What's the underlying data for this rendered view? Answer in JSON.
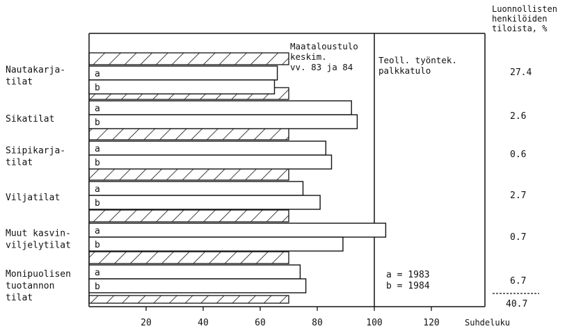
{
  "chart_data": {
    "type": "bar",
    "orientation": "horizontal",
    "categories": [
      [
        "Nautakarja-",
        "tilat"
      ],
      [
        "Sikatilat"
      ],
      [
        "Siipikarja-",
        "tilat"
      ],
      [
        "Viljatilat"
      ],
      [
        "Muut kasvin-",
        "viljelytilat"
      ],
      [
        "Monipuolisen",
        "tuotannon",
        "tilat"
      ]
    ],
    "series": [
      {
        "name": "a",
        "values": [
          66,
          92,
          83,
          75,
          104,
          74
        ]
      },
      {
        "name": "b",
        "values": [
          65,
          94,
          85,
          81,
          89,
          76
        ]
      }
    ],
    "reference_bar": {
      "value": 70
    },
    "reference_line": {
      "value": 100
    },
    "xlim": [
      0,
      140
    ],
    "x_ticks": [
      20,
      40,
      60,
      80,
      100,
      120
    ],
    "xlabel": "Suhdeluku",
    "annotations": {
      "reference_bar_label": [
        "Maataloustulo",
        "keskim.",
        "vv. 83 ja 84"
      ],
      "reference_line_label": [
        "Teoll. työntek.",
        "palkkatulo"
      ],
      "legend": [
        "a = 1983",
        "b = 1984"
      ]
    },
    "share": {
      "header": [
        "Luonnollisten",
        "henkilöiden",
        "tiloista, %"
      ],
      "values": [
        "27.4",
        "2.6",
        "0.6",
        "2.7",
        "0.7",
        "6.7"
      ],
      "total": "40.7"
    }
  }
}
